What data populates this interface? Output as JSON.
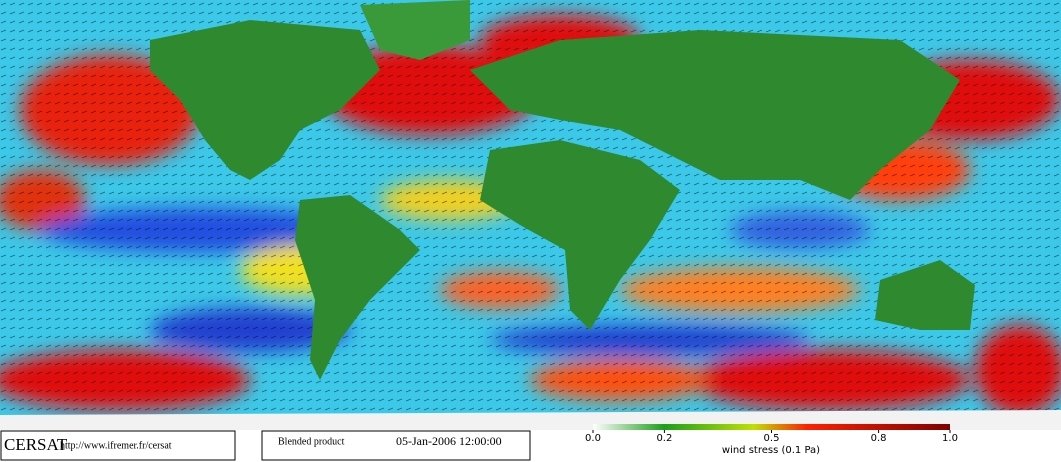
{
  "footer": {
    "brand": "CERSAT",
    "url": "http://www.ifremer.fr/cersat",
    "product": "Blended product",
    "datetime": "05-Jan-2006 12:00:00"
  },
  "colorbar": {
    "label": "wind stress (0.1 Pa)",
    "lim": [
      0,
      1
    ],
    "ticks": [
      {
        "value": 0,
        "label": "0.0"
      },
      0.2,
      0.5,
      0.8,
      {
        "value": 1,
        "label": "1.0"
      }
    ]
  }
}
